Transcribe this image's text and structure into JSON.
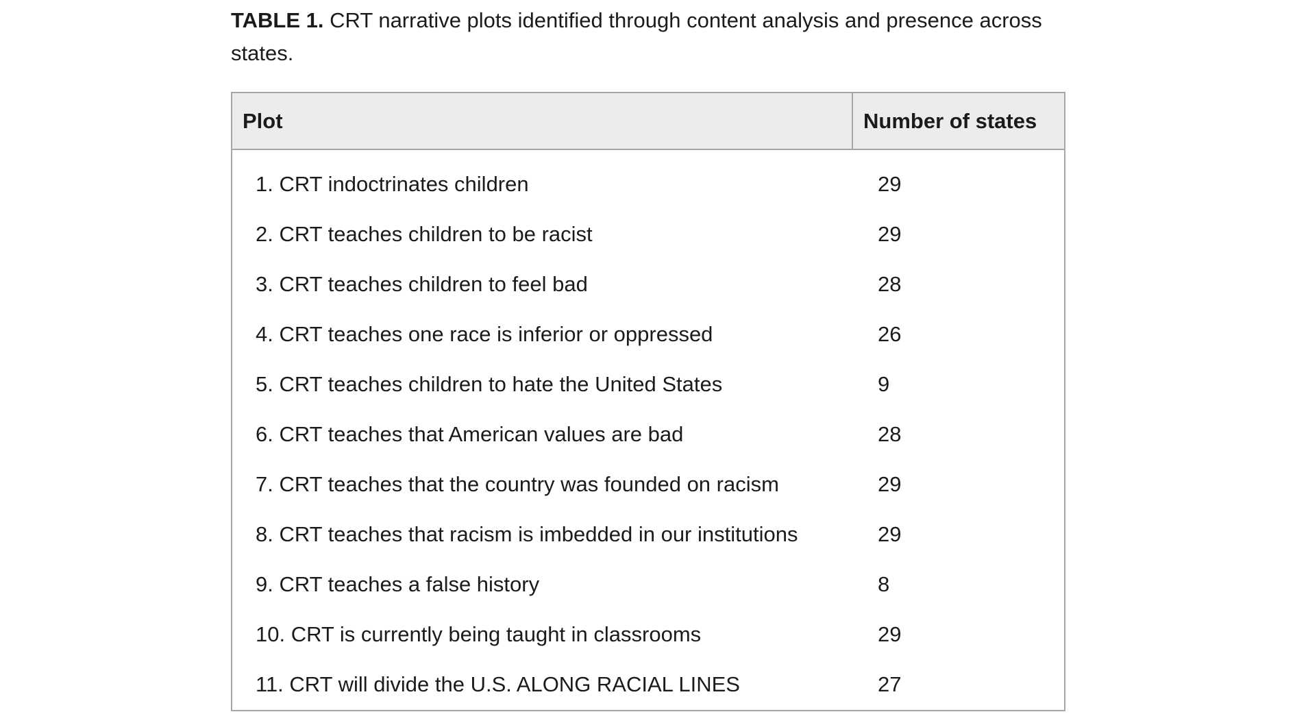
{
  "theme": {
    "page_background": "#ffffff",
    "text_color": "#1b1b1b",
    "table_border_color": "#a6a6a6",
    "header_background": "#ececec"
  },
  "caption": {
    "label": "TABLE 1.",
    "text": "CRT narrative plots identified through content analysis and presence across states."
  },
  "table": {
    "columns": [
      {
        "key": "plot",
        "label": "Plot"
      },
      {
        "key": "states",
        "label": "Number of states"
      }
    ],
    "rows": [
      {
        "plot": "1. CRT indoctrinates children",
        "states": "29"
      },
      {
        "plot": "2. CRT teaches children to be racist",
        "states": "29"
      },
      {
        "plot": "3. CRT teaches children to feel bad",
        "states": "28"
      },
      {
        "plot": "4. CRT teaches one race is inferior or oppressed",
        "states": "26"
      },
      {
        "plot": "5. CRT teaches children to hate the United States",
        "states": "9"
      },
      {
        "plot": "6. CRT teaches that American values are bad",
        "states": "28"
      },
      {
        "plot": "7. CRT teaches that the country was founded on racism",
        "states": "29"
      },
      {
        "plot": "8. CRT teaches that racism is imbedded in our institutions",
        "states": "29"
      },
      {
        "plot": "9. CRT teaches a false history",
        "states": "8"
      },
      {
        "plot": "10. CRT is currently being taught in classrooms",
        "states": "29"
      },
      {
        "plot": "11. CRT will divide the U.S. ALONG RACIAL LINES",
        "states": "27"
      }
    ]
  },
  "chart_data": {
    "type": "table",
    "title": "TABLE 1. CRT narrative plots identified through content analysis and presence across states.",
    "columns": [
      "Plot",
      "Number of states"
    ],
    "categories": [
      "1. CRT indoctrinates children",
      "2. CRT teaches children to be racist",
      "3. CRT teaches children to feel bad",
      "4. CRT teaches one race is inferior or oppressed",
      "5. CRT teaches children to hate the United States",
      "6. CRT teaches that American values are bad",
      "7. CRT teaches that the country was founded on racism",
      "8. CRT teaches that racism is imbedded in our institutions",
      "9. CRT teaches a false history",
      "10. CRT is currently being taught in classrooms",
      "11. CRT will divide the U.S. ALONG RACIAL LINES"
    ],
    "values": [
      29,
      29,
      28,
      26,
      9,
      28,
      29,
      29,
      8,
      29,
      27
    ]
  }
}
